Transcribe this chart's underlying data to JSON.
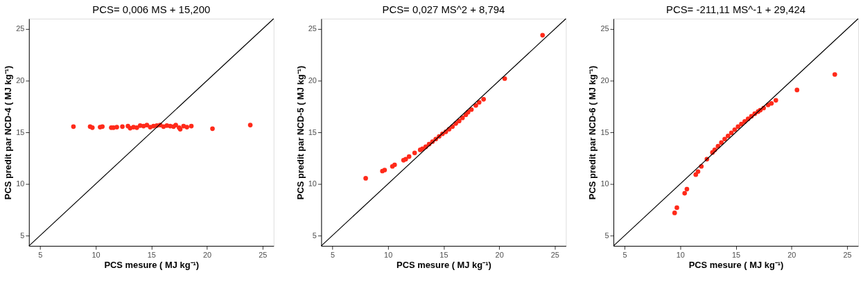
{
  "chart_data": [
    {
      "type": "scatter",
      "title": "PCS= 0,006 MS + 15,200",
      "xlabel": "PCS mesure  ( MJ kg⁻¹)",
      "ylabel": "PCS predit par NCD-4  ( MJ kg⁻¹)",
      "xlim": [
        4,
        26
      ],
      "ylim": [
        4,
        26
      ],
      "xticks": [
        5,
        10,
        15,
        20,
        25
      ],
      "yticks": [
        5,
        10,
        15,
        20,
        25
      ],
      "grid": false,
      "series": [
        {
          "marker": "circle",
          "color": "#ff2a1a",
          "x": [
            8.0,
            9.5,
            9.7,
            10.4,
            10.6,
            11.4,
            11.6,
            11.9,
            12.4,
            12.9,
            13.1,
            13.4,
            13.7,
            14.0,
            14.3,
            14.6,
            14.9,
            15.2,
            15.5,
            15.8,
            16.1,
            16.4,
            16.7,
            17.0,
            17.2,
            17.5,
            17.6,
            17.9,
            18.2,
            18.6,
            20.5,
            23.9
          ],
          "values": [
            15.55,
            15.55,
            15.45,
            15.5,
            15.55,
            15.45,
            15.45,
            15.5,
            15.55,
            15.6,
            15.4,
            15.5,
            15.45,
            15.65,
            15.6,
            15.7,
            15.5,
            15.6,
            15.65,
            15.7,
            15.55,
            15.65,
            15.6,
            15.55,
            15.7,
            15.45,
            15.3,
            15.6,
            15.5,
            15.6,
            15.35,
            15.7
          ]
        },
        {
          "type": "line",
          "color": "#000000",
          "x": [
            4,
            26
          ],
          "values": [
            4,
            26
          ]
        }
      ]
    },
    {
      "type": "scatter",
      "title": "PCS= 0,027 MS^2 + 8,794",
      "xlabel": "PCS mesure  ( MJ kg⁻¹)",
      "ylabel": "PCS predit par NCD-5  ( MJ kg⁻¹)",
      "xlim": [
        4,
        26
      ],
      "ylim": [
        4,
        26
      ],
      "xticks": [
        5,
        10,
        15,
        20,
        25
      ],
      "yticks": [
        5,
        10,
        15,
        20,
        25
      ],
      "grid": false,
      "series": [
        {
          "marker": "circle",
          "color": "#ff2a1a",
          "x": [
            8.0,
            9.5,
            9.7,
            10.4,
            10.6,
            11.4,
            11.6,
            11.9,
            12.4,
            12.9,
            13.1,
            13.4,
            13.7,
            14.0,
            14.3,
            14.6,
            14.9,
            15.2,
            15.5,
            15.8,
            16.1,
            16.4,
            16.7,
            17.0,
            17.2,
            17.5,
            17.9,
            18.2,
            18.6,
            20.5,
            23.9
          ],
          "values": [
            10.55,
            11.25,
            11.35,
            11.7,
            11.85,
            12.3,
            12.4,
            12.65,
            13.0,
            13.3,
            13.4,
            13.6,
            13.85,
            14.1,
            14.35,
            14.6,
            14.85,
            15.05,
            15.3,
            15.55,
            15.85,
            16.1,
            16.4,
            16.7,
            16.95,
            17.2,
            17.6,
            17.9,
            18.2,
            20.2,
            24.4
          ]
        },
        {
          "type": "line",
          "color": "#000000",
          "x": [
            4,
            26
          ],
          "values": [
            4,
            26
          ]
        }
      ]
    },
    {
      "type": "scatter",
      "title": "PCS= -211,11 MS^-1 + 29,424",
      "xlabel": "PCS mesure  ( MJ kg⁻¹)",
      "ylabel": "PCS predit par NCD-6  ( MJ kg⁻¹)",
      "xlim": [
        4,
        26
      ],
      "ylim": [
        4,
        26
      ],
      "xticks": [
        5,
        10,
        15,
        20,
        25
      ],
      "yticks": [
        5,
        10,
        15,
        20,
        25
      ],
      "grid": false,
      "series": [
        {
          "marker": "circle",
          "color": "#ff2a1a",
          "x": [
            9.5,
            9.7,
            10.4,
            10.6,
            11.4,
            11.6,
            11.9,
            12.4,
            12.9,
            13.1,
            13.4,
            13.7,
            14.0,
            14.3,
            14.6,
            14.9,
            15.2,
            15.5,
            15.8,
            16.1,
            16.4,
            16.7,
            17.0,
            17.2,
            17.5,
            17.9,
            18.2,
            18.6,
            20.5,
            23.9
          ],
          "values": [
            7.2,
            7.7,
            9.1,
            9.5,
            10.9,
            11.2,
            11.7,
            12.4,
            13.05,
            13.3,
            13.65,
            14.0,
            14.35,
            14.65,
            14.95,
            15.25,
            15.55,
            15.8,
            16.05,
            16.3,
            16.55,
            16.8,
            17.0,
            17.15,
            17.35,
            17.65,
            17.8,
            18.1,
            19.1,
            20.6
          ]
        },
        {
          "type": "line",
          "color": "#000000",
          "x": [
            4,
            26
          ],
          "values": [
            4,
            26
          ]
        }
      ]
    }
  ]
}
